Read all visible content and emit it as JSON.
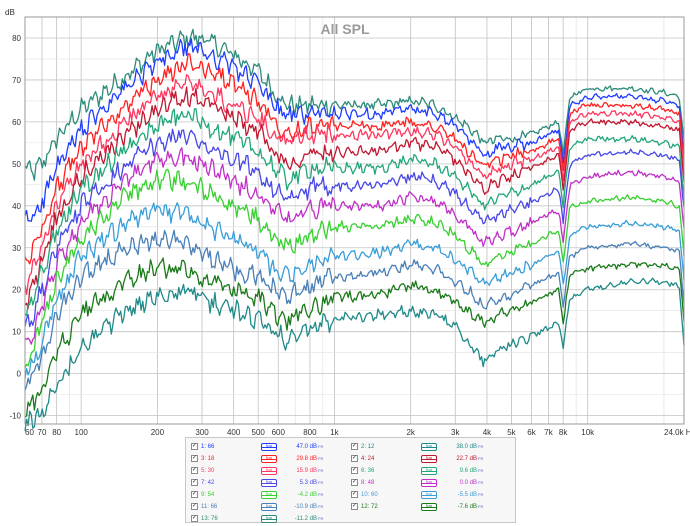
{
  "chart_data": {
    "type": "line",
    "title": "All SPL",
    "ylabel": "dB",
    "xlabel": "",
    "x_scale": "log",
    "xlim": [
      60,
      24000
    ],
    "ylim": [
      -12,
      85
    ],
    "grid": true,
    "x_tick_labels": [
      "60",
      "70",
      "80",
      "100",
      "200",
      "300",
      "400",
      "500",
      "600",
      "800",
      "1k",
      "2k",
      "3k",
      "4k",
      "5k",
      "6k",
      "7k",
      "8k",
      "10k",
      "24.0k Hz"
    ],
    "x_tick_values": [
      60,
      70,
      80,
      100,
      200,
      300,
      400,
      500,
      600,
      800,
      1000,
      2000,
      3000,
      4000,
      5000,
      6000,
      7000,
      8000,
      10000,
      24000
    ],
    "y_tick_values": [
      -10,
      0,
      10,
      20,
      30,
      40,
      50,
      60,
      70,
      80
    ],
    "shape_x": [
      60,
      65,
      70,
      80,
      100,
      150,
      200,
      260,
      300,
      400,
      500,
      600,
      650,
      700,
      800,
      1000,
      1500,
      2000,
      2500,
      3000,
      3500,
      3900,
      4500,
      5000,
      6000,
      7000,
      7700,
      8000,
      8500,
      10000,
      15000,
      20000,
      23000,
      24000
    ],
    "series": [
      {
        "label": "13: 76",
        "color": "#2e8b7a",
        "values": [
          49,
          48,
          50,
          56,
          63,
          71,
          77,
          80,
          80,
          76,
          72,
          66,
          64,
          64,
          64,
          64,
          64,
          65,
          64,
          61,
          58,
          55,
          56,
          56,
          57,
          59,
          60,
          52,
          66,
          68,
          68,
          67,
          66,
          55
        ]
      },
      {
        "label": "1: 66",
        "color": "#1f3cff",
        "values": [
          36,
          38,
          41,
          49,
          58,
          68,
          74,
          78,
          77,
          73,
          69,
          63,
          61,
          62,
          62,
          62,
          62,
          63,
          62,
          59,
          55,
          52,
          54,
          54,
          55,
          57,
          58,
          50,
          64,
          66,
          66,
          65,
          64,
          52
        ]
      },
      {
        "label": "3: 18",
        "color": "#ff2020",
        "values": [
          26,
          30,
          35,
          44,
          54,
          64,
          70,
          74,
          73,
          69,
          65,
          59,
          58,
          58,
          59,
          59,
          59,
          60,
          59,
          56,
          52,
          49,
          51,
          52,
          53,
          55,
          56,
          48,
          62,
          64,
          64,
          63,
          62,
          50
        ]
      },
      {
        "label": "5: 30",
        "color": "#ff3860",
        "values": [
          20,
          25,
          30,
          40,
          50,
          60,
          66,
          69,
          68,
          64,
          61,
          56,
          55,
          56,
          57,
          57,
          57,
          58,
          57,
          54,
          50,
          47,
          49,
          50,
          51,
          53,
          54,
          46,
          60,
          62,
          62,
          61,
          60,
          48
        ]
      },
      {
        "label": "4: 24",
        "color": "#c01830",
        "values": [
          16,
          21,
          27,
          37,
          47,
          57,
          63,
          66,
          65,
          61,
          58,
          52,
          50,
          51,
          53,
          53,
          53,
          55,
          54,
          51,
          47,
          44,
          46,
          47,
          49,
          51,
          52,
          44,
          58,
          60,
          60,
          59,
          58,
          46
        ]
      },
      {
        "label": "6: 36",
        "color": "#22a878",
        "values": [
          14,
          18,
          24,
          34,
          44,
          54,
          59,
          62,
          60,
          56,
          53,
          48,
          46,
          47,
          49,
          49,
          49,
          51,
          50,
          47,
          43,
          40,
          42,
          43,
          45,
          47,
          48,
          40,
          54,
          56,
          56,
          55,
          54,
          42
        ]
      },
      {
        "label": "7: 42",
        "color": "#4848e8",
        "values": [
          10,
          14,
          20,
          30,
          40,
          50,
          55,
          57,
          55,
          51,
          48,
          43,
          41,
          42,
          44,
          45,
          45,
          47,
          46,
          43,
          39,
          36,
          38,
          39,
          41,
          43,
          44,
          36,
          50,
          52,
          53,
          52,
          51,
          39
        ]
      },
      {
        "label": "8: 48",
        "color": "#c030c8",
        "values": [
          6,
          10,
          16,
          26,
          36,
          46,
          51,
          52,
          50,
          46,
          43,
          38,
          36,
          37,
          39,
          40,
          40,
          42,
          41,
          38,
          34,
          31,
          33,
          34,
          36,
          38,
          39,
          31,
          45,
          47,
          48,
          47,
          46,
          34
        ]
      },
      {
        "label": "9: 54",
        "color": "#38d030",
        "values": [
          2,
          6,
          12,
          22,
          32,
          42,
          46,
          46,
          44,
          40,
          37,
          32,
          30,
          31,
          33,
          35,
          35,
          37,
          36,
          33,
          29,
          26,
          28,
          29,
          31,
          33,
          34,
          26,
          40,
          41,
          42,
          41,
          40,
          28
        ]
      },
      {
        "label": "10: 60",
        "color": "#3a9ed8",
        "values": [
          0,
          3,
          8,
          18,
          28,
          36,
          39,
          38,
          36,
          32,
          29,
          24,
          23,
          24,
          26,
          28,
          29,
          31,
          30,
          27,
          24,
          21,
          23,
          24,
          26,
          28,
          29,
          21,
          33,
          35,
          36,
          35,
          34,
          22
        ]
      },
      {
        "label": "11: 66",
        "color": "#4a80b8",
        "values": [
          -2,
          0,
          4,
          14,
          23,
          30,
          32,
          31,
          29,
          25,
          23,
          19,
          18,
          19,
          21,
          23,
          24,
          26,
          25,
          22,
          19,
          16,
          18,
          19,
          21,
          23,
          24,
          16,
          28,
          30,
          31,
          30,
          29,
          17
        ]
      },
      {
        "label": "12: 72",
        "color": "#1a7a1a",
        "values": [
          -8,
          -7,
          -4,
          5,
          14,
          22,
          25,
          25,
          23,
          20,
          18,
          14,
          13,
          14,
          16,
          18,
          19,
          21,
          20,
          17,
          14,
          12,
          14,
          15,
          17,
          19,
          20,
          12,
          24,
          25,
          26,
          26,
          25,
          13
        ]
      },
      {
        "label": "2: 12",
        "color": "#208a88",
        "values": [
          -12,
          -11,
          -9,
          -3,
          6,
          15,
          19,
          20,
          18,
          15,
          13,
          9,
          8,
          9,
          11,
          13,
          14,
          15,
          14,
          11,
          6,
          3,
          6,
          7,
          9,
          11,
          12,
          6,
          18,
          20,
          22,
          22,
          21,
          7
        ]
      }
    ],
    "legend": [
      {
        "label": "1: 66",
        "offset": "47.0 dB",
        "color": "#1f3cff",
        "swatch": "/ve"
      },
      {
        "label": "2: 12",
        "offset": "38.0 dB",
        "color": "#208a88",
        "swatch": "/ve"
      },
      {
        "label": "3: 18",
        "offset": "29.8 dB",
        "color": "#ff2020",
        "swatch": "/ve"
      },
      {
        "label": "4: 24",
        "offset": "22.7 dB",
        "color": "#c01830",
        "swatch": "/ve"
      },
      {
        "label": "5: 30",
        "offset": "15.9 dB",
        "color": "#ff3860",
        "swatch": "/ve"
      },
      {
        "label": "6: 36",
        "offset": "9.6 dB",
        "color": "#22a878",
        "swatch": "/ve"
      },
      {
        "label": "7: 42",
        "offset": "5.3 dB",
        "color": "#4848e8",
        "swatch": "/ve"
      },
      {
        "label": "8: 48",
        "offset": "0.0 dB",
        "color": "#c030c8",
        "swatch": "/ve"
      },
      {
        "label": "9: 54",
        "offset": "-4.2 dB",
        "color": "#38d030",
        "swatch": "/ve"
      },
      {
        "label": "10: 60",
        "offset": "-5.5 dB",
        "color": "#3a9ed8",
        "swatch": "/ve"
      },
      {
        "label": "11: 66",
        "offset": "-10.9 dB",
        "color": "#4a80b8",
        "swatch": "/ve"
      },
      {
        "label": "12: 72",
        "offset": "-7.6 dB",
        "color": "#1a7a1a",
        "swatch": "/ve"
      },
      {
        "label": "13: 76",
        "offset": "-11.2 dB",
        "color": "#2e8b7a",
        "swatch": "/ve"
      }
    ],
    "legend_unit": "FR"
  }
}
